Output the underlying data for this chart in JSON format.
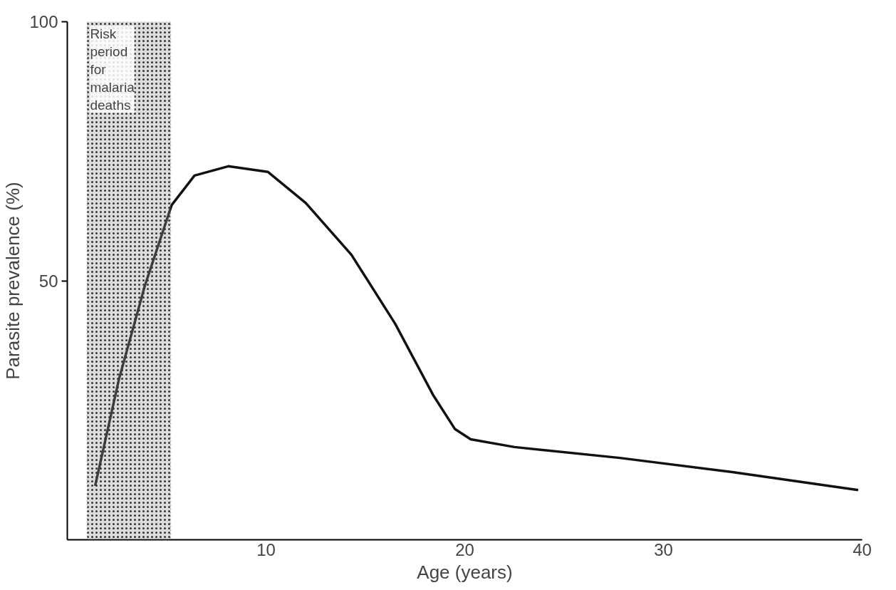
{
  "chart_data": {
    "type": "line",
    "xlabel": "Age (years)",
    "ylabel": "Parasite prevalence (%)",
    "x": [
      1.4,
      2.6,
      3.9,
      5.25,
      6.4,
      8.1,
      10.1,
      12,
      14.3,
      16.5,
      18.4,
      19.5,
      20.3,
      22.5,
      27.8,
      33.4,
      39.8
    ],
    "series": [
      {
        "color": "#111111",
        "values": [
          10.4,
          31,
          49,
          64.6,
          70.3,
          72.1,
          71,
          65,
          55,
          41.7,
          28,
          21.4,
          19.4,
          17.9,
          15.8,
          13.1,
          9.6
        ]
      }
    ],
    "xlim": [
      0,
      40
    ],
    "ylim": [
      0,
      100
    ],
    "xticks": [
      10,
      20,
      30,
      40
    ],
    "yticks": [
      50,
      100
    ],
    "bands": [
      {
        "axis": "x",
        "from": 1,
        "to": 5.2,
        "label": "Risk\nperiod\nfor\nmalaria\ndeaths",
        "color": "#9a9a9a"
      }
    ],
    "grid": false,
    "marker": "none",
    "line_style": "solid"
  }
}
